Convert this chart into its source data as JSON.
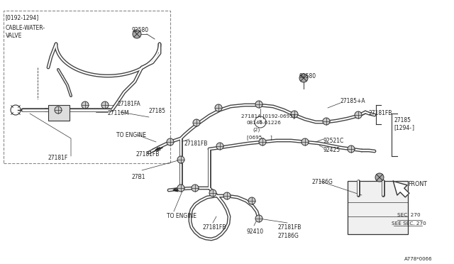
{
  "bg_color": "#ffffff",
  "line_color": "#333333",
  "figsize": [
    6.4,
    3.72
  ],
  "dpi": 100,
  "xlim": [
    0,
    640
  ],
  "ylim": [
    0,
    372
  ]
}
